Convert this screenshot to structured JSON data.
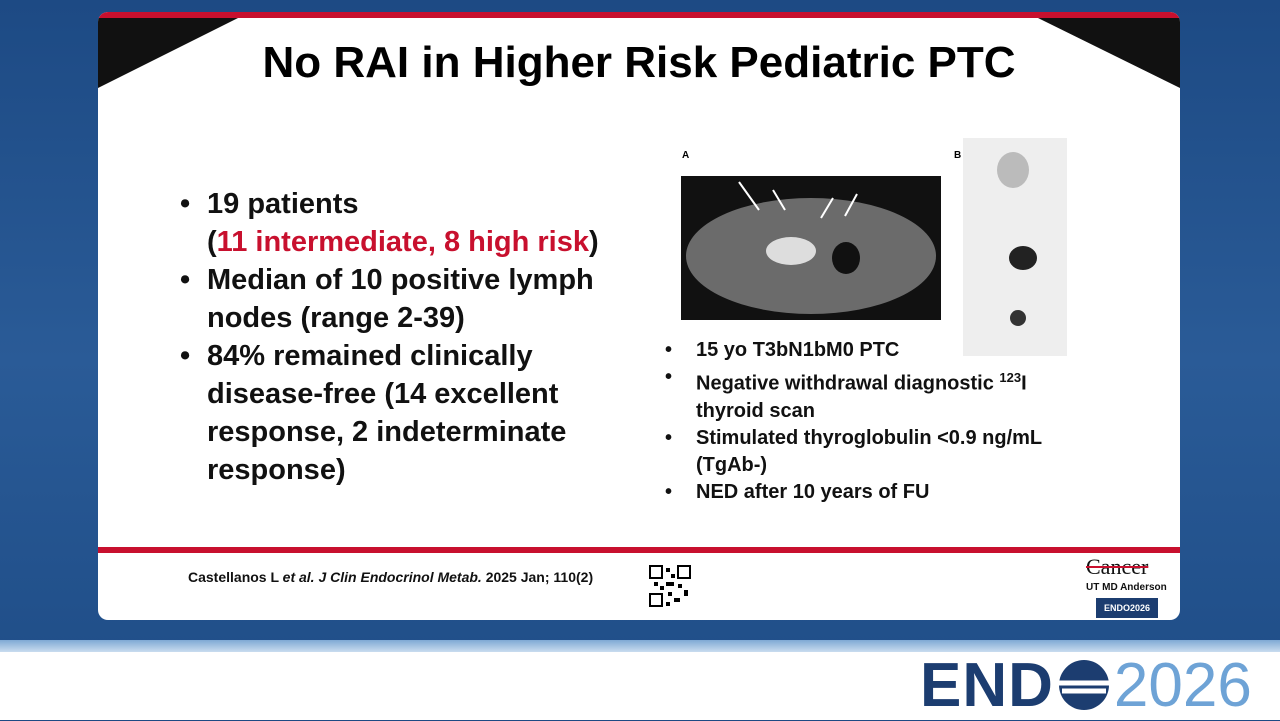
{
  "slide": {
    "title": "No RAI in Higher Risk Pediatric PTC",
    "left_bullets": [
      {
        "text": "19 patients",
        "detail_open": "(",
        "detail_highlight": "11 intermediate, 8 high risk",
        "detail_close": ")"
      },
      {
        "text": "Median of 10 positive lymph nodes (range 2-39)"
      },
      {
        "text": "84% remained clinically disease-free (14 excellent response, 2 indeterminate response)"
      }
    ],
    "figure": {
      "panel_a": "A",
      "panel_b": "B"
    },
    "right_bullets": [
      {
        "text": "15 yo T3bN1bM0 PTC"
      },
      {
        "text": "Negative withdrawal diagnostic ",
        "superscript": "123",
        "after": "I thyroid scan"
      },
      {
        "text": "Stimulated thyroglobulin <0.9 ng/mL (TgAb-)"
      },
      {
        "text": "NED after 10 years of FU"
      }
    ],
    "citation": {
      "authors": "Castellanos L ",
      "etal": "et al.",
      "journal": " J Clin Endocrinol Metab.",
      "details": " 2025 Jan; 110(2)"
    },
    "logo": {
      "cancer": "Cancer",
      "institution": "UT MD Anderson",
      "badge": "ENDO2026"
    },
    "footer": {
      "brand_left": "END",
      "brand_right": "2026"
    }
  }
}
